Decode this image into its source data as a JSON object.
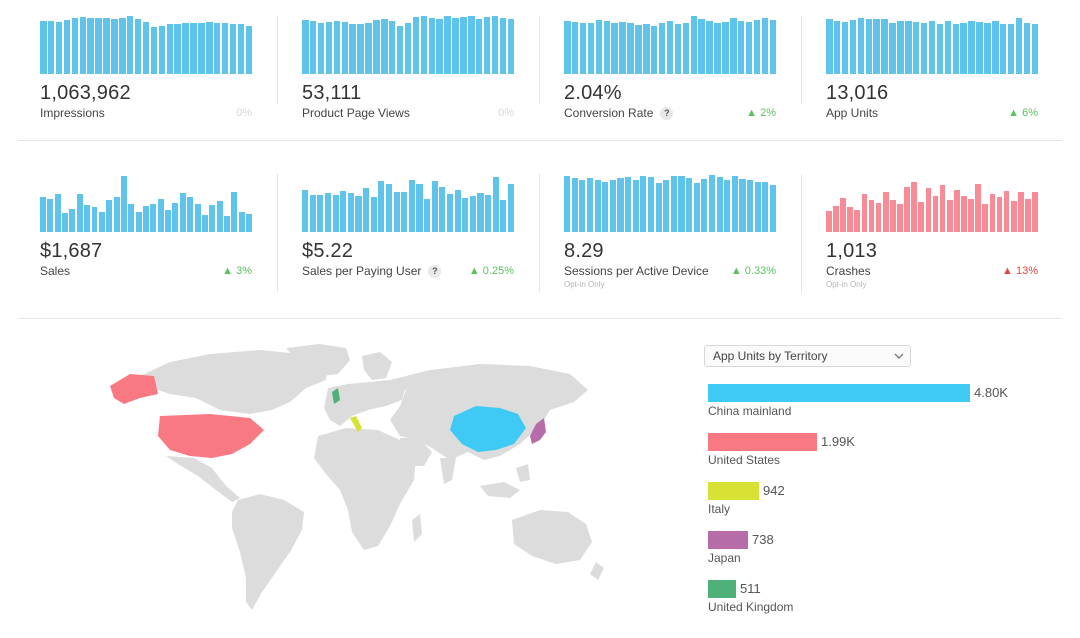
{
  "metrics": [
    {
      "value": "1,063,962",
      "label": "Impressions",
      "delta": "0%",
      "trend": "muted",
      "help": false,
      "note": "",
      "color": "#5ec4ec",
      "spark": [
        0.86,
        0.86,
        0.84,
        0.87,
        0.91,
        0.92,
        0.9,
        0.91,
        0.9,
        0.89,
        0.91,
        0.93,
        0.89,
        0.84,
        0.76,
        0.78,
        0.8,
        0.81,
        0.82,
        0.82,
        0.83,
        0.84,
        0.82,
        0.82,
        0.81,
        0.8,
        0.77
      ]
    },
    {
      "value": "53,111",
      "label": "Product Page Views",
      "delta": "0%",
      "trend": "muted",
      "help": false,
      "note": "",
      "color": "#5ec4ec",
      "spark": [
        0.87,
        0.85,
        0.83,
        0.84,
        0.86,
        0.84,
        0.8,
        0.8,
        0.83,
        0.87,
        0.89,
        0.86,
        0.78,
        0.82,
        0.92,
        0.93,
        0.9,
        0.88,
        0.93,
        0.9,
        0.92,
        0.94,
        0.88,
        0.92,
        0.94,
        0.9,
        0.88
      ]
    },
    {
      "value": "2.04%",
      "label": "Conversion Rate",
      "delta": "2%",
      "trend": "up",
      "help": true,
      "note": "",
      "color": "#5ec4ec",
      "spark": [
        0.86,
        0.84,
        0.82,
        0.83,
        0.87,
        0.86,
        0.82,
        0.84,
        0.82,
        0.79,
        0.81,
        0.78,
        0.82,
        0.86,
        0.8,
        0.82,
        0.93,
        0.89,
        0.86,
        0.82,
        0.84,
        0.91,
        0.86,
        0.84,
        0.87,
        0.9,
        0.87
      ]
    },
    {
      "value": "13,016",
      "label": "App Units",
      "delta": "6%",
      "trend": "up",
      "help": false,
      "note": "",
      "color": "#5ec4ec",
      "spark": [
        0.88,
        0.86,
        0.84,
        0.87,
        0.91,
        0.88,
        0.89,
        0.89,
        0.83,
        0.85,
        0.86,
        0.84,
        0.83,
        0.85,
        0.8,
        0.85,
        0.8,
        0.83,
        0.85,
        0.84,
        0.82,
        0.86,
        0.8,
        0.81,
        0.9,
        0.83,
        0.8
      ]
    },
    {
      "value": "$1,687",
      "label": "Sales",
      "delta": "3%",
      "trend": "up",
      "help": false,
      "note": "",
      "color": "#5ec4ec",
      "spark": [
        0.58,
        0.55,
        0.64,
        0.31,
        0.38,
        0.63,
        0.45,
        0.41,
        0.34,
        0.53,
        0.58,
        0.94,
        0.46,
        0.33,
        0.44,
        0.47,
        0.55,
        0.37,
        0.48,
        0.65,
        0.58,
        0.47,
        0.29,
        0.45,
        0.52,
        0.26,
        0.66,
        0.33,
        0.3
      ]
    },
    {
      "value": "$5.22",
      "label": "Sales per Paying User",
      "delta": "0.25%",
      "trend": "up",
      "help": true,
      "note": "",
      "color": "#5ec4ec",
      "spark": [
        0.7,
        0.62,
        0.61,
        0.65,
        0.61,
        0.69,
        0.65,
        0.6,
        0.74,
        0.59,
        0.85,
        0.8,
        0.66,
        0.66,
        0.86,
        0.8,
        0.55,
        0.85,
        0.75,
        0.64,
        0.7,
        0.57,
        0.6,
        0.65,
        0.61,
        0.92,
        0.53,
        0.8
      ]
    },
    {
      "value": "8.29",
      "label": "Sessions per Active Device",
      "delta": "0.33%",
      "trend": "up",
      "help": false,
      "note": "Opt-in Only",
      "color": "#5ec4ec",
      "spark": [
        0.93,
        0.9,
        0.86,
        0.9,
        0.86,
        0.83,
        0.87,
        0.9,
        0.92,
        0.86,
        0.93,
        0.91,
        0.82,
        0.86,
        0.93,
        0.94,
        0.9,
        0.82,
        0.88,
        0.95,
        0.91,
        0.86,
        0.93,
        0.88,
        0.87,
        0.84,
        0.83,
        0.78
      ]
    },
    {
      "value": "1,013",
      "label": "Crashes",
      "delta": "13%",
      "trend": "down",
      "help": false,
      "note": "Opt-in Only",
      "color": "#f88b95",
      "spark": [
        0.35,
        0.43,
        0.56,
        0.42,
        0.37,
        0.64,
        0.54,
        0.48,
        0.66,
        0.53,
        0.47,
        0.75,
        0.83,
        0.5,
        0.73,
        0.6,
        0.78,
        0.54,
        0.7,
        0.6,
        0.55,
        0.8,
        0.46,
        0.63,
        0.58,
        0.68,
        0.52,
        0.66,
        0.55,
        0.66
      ]
    }
  ],
  "territory_dropdown": {
    "label": "App Units by Territory"
  },
  "territories": [
    {
      "name": "China mainland",
      "value": "4.80K",
      "units": 4800,
      "color": "#3ecaf4"
    },
    {
      "name": "United States",
      "value": "1.99K",
      "units": 1990,
      "color": "#f87982"
    },
    {
      "name": "Italy",
      "value": "942",
      "units": 942,
      "color": "#d7e234"
    },
    {
      "name": "Japan",
      "value": "738",
      "units": 738,
      "color": "#b66ca9"
    },
    {
      "name": "United Kingdom",
      "value": "511",
      "units": 511,
      "color": "#4fb17a"
    }
  ],
  "map": {
    "base_color": "#dcdcdc"
  }
}
